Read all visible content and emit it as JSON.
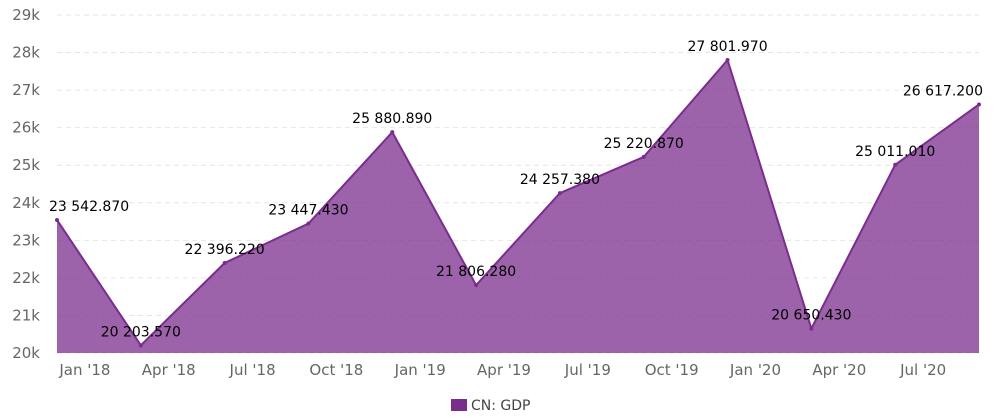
{
  "chart_data": {
    "type": "area",
    "title": "",
    "xlabel": "",
    "ylabel": "",
    "ylim": [
      20000,
      29000
    ],
    "y_ticks": [
      "20k",
      "21k",
      "22k",
      "23k",
      "24k",
      "25k",
      "26k",
      "27k",
      "28k",
      "29k"
    ],
    "x_ticks": [
      "Jan '18",
      "Apr '18",
      "Jul '18",
      "Oct '18",
      "Jan '19",
      "Apr '19",
      "Jul '19",
      "Oct '19",
      "Jan '20",
      "Apr '20",
      "Jul '20"
    ],
    "grid": true,
    "legend_position": "bottom-center",
    "series": [
      {
        "name": "CN: GDP",
        "color": "#7b2d8e",
        "points": [
          {
            "x": "2017-12",
            "y": 23542.87,
            "label": "23 542.870"
          },
          {
            "x": "2018-03",
            "y": 20203.57,
            "label": "20 203.570"
          },
          {
            "x": "2018-06",
            "y": 22396.22,
            "label": "22 396.220"
          },
          {
            "x": "2018-09",
            "y": 23447.43,
            "label": "23 447.430"
          },
          {
            "x": "2018-12",
            "y": 25880.89,
            "label": "25 880.890"
          },
          {
            "x": "2019-03",
            "y": 21806.28,
            "label": "21 806.280"
          },
          {
            "x": "2019-06",
            "y": 24257.38,
            "label": "24 257.380"
          },
          {
            "x": "2019-09",
            "y": 25220.87,
            "label": "25 220.870"
          },
          {
            "x": "2019-12",
            "y": 27801.97,
            "label": "27 801.970"
          },
          {
            "x": "2020-03",
            "y": 20650.43,
            "label": "20 650.430"
          },
          {
            "x": "2020-06",
            "y": 25011.01,
            "label": "25 011.010"
          },
          {
            "x": "2020-09",
            "y": 26617.2,
            "label": "26 617.200"
          }
        ]
      }
    ]
  }
}
